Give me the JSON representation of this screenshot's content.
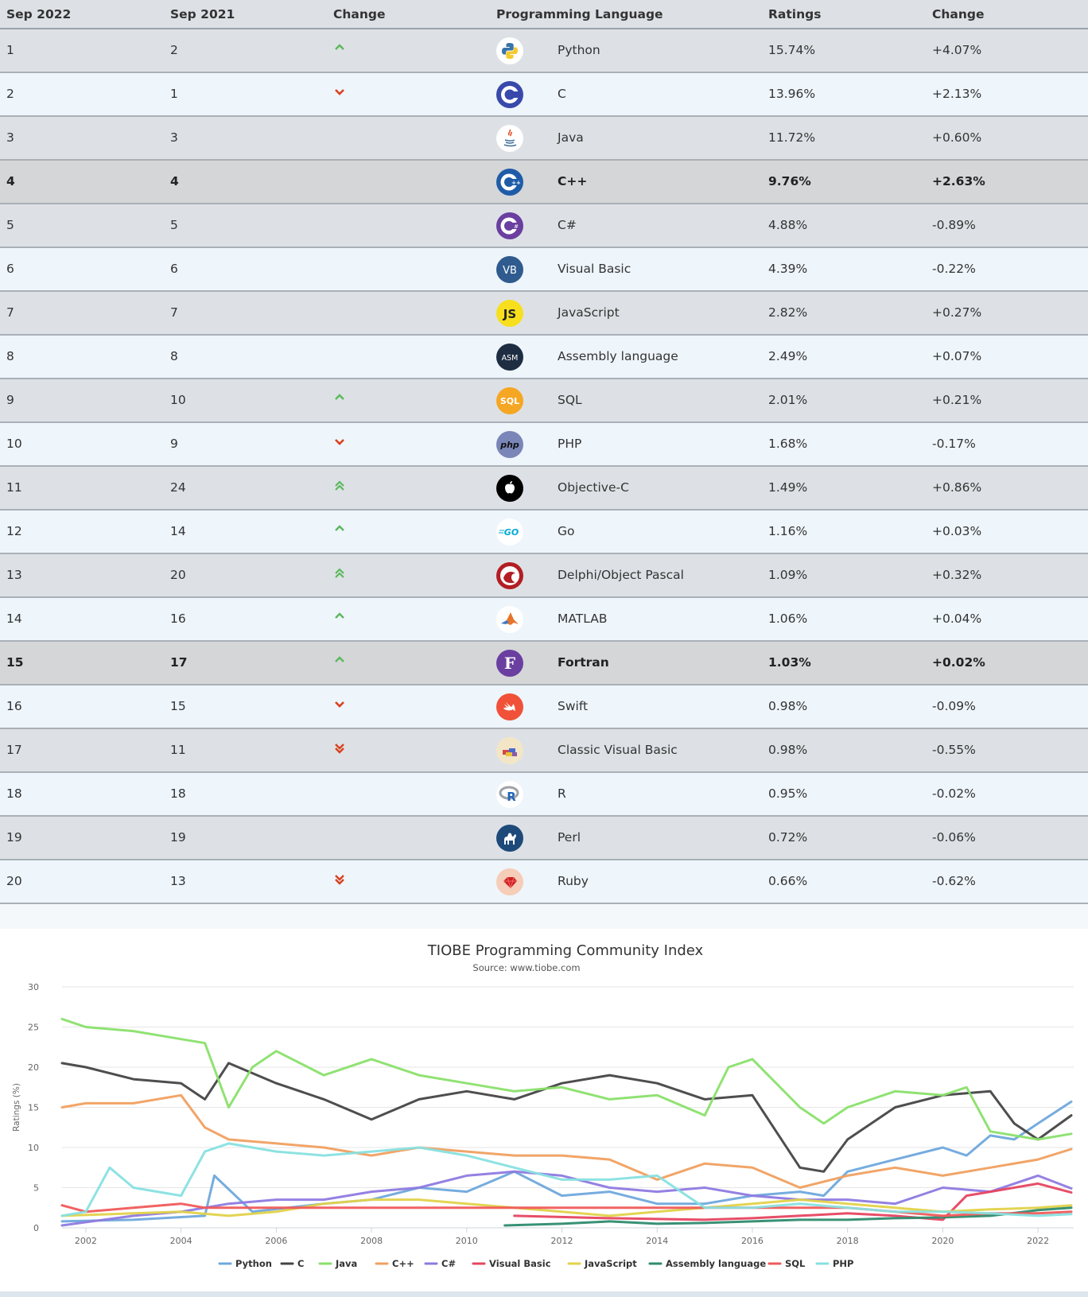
{
  "table": {
    "headers": [
      "Sep 2022",
      "Sep 2021",
      "Change",
      "Programming Language",
      "Ratings",
      "Change"
    ],
    "rows": [
      {
        "rank": "1",
        "prev": "2",
        "trend": "up",
        "lang": "Python",
        "rating": "15.74%",
        "change": "+4.07%",
        "icon": "python-logo-icon",
        "hl": false
      },
      {
        "rank": "2",
        "prev": "1",
        "trend": "down",
        "lang": "C",
        "rating": "13.96%",
        "change": "+2.13%",
        "icon": "c-logo-icon",
        "hl": false
      },
      {
        "rank": "3",
        "prev": "3",
        "trend": "none",
        "lang": "Java",
        "rating": "11.72%",
        "change": "+0.60%",
        "icon": "java-logo-icon",
        "hl": false
      },
      {
        "rank": "4",
        "prev": "4",
        "trend": "none",
        "lang": "C++",
        "rating": "9.76%",
        "change": "+2.63%",
        "icon": "cpp-logo-icon",
        "hl": true
      },
      {
        "rank": "5",
        "prev": "5",
        "trend": "none",
        "lang": "C#",
        "rating": "4.88%",
        "change": "-0.89%",
        "icon": "csharp-logo-icon",
        "hl": false
      },
      {
        "rank": "6",
        "prev": "6",
        "trend": "none",
        "lang": "Visual Basic",
        "rating": "4.39%",
        "change": "-0.22%",
        "icon": "vb-logo-icon",
        "hl": false
      },
      {
        "rank": "7",
        "prev": "7",
        "trend": "none",
        "lang": "JavaScript",
        "rating": "2.82%",
        "change": "+0.27%",
        "icon": "js-logo-icon",
        "hl": false
      },
      {
        "rank": "8",
        "prev": "8",
        "trend": "none",
        "lang": "Assembly language",
        "rating": "2.49%",
        "change": "+0.07%",
        "icon": "asm-logo-icon",
        "hl": false
      },
      {
        "rank": "9",
        "prev": "10",
        "trend": "up",
        "lang": "SQL",
        "rating": "2.01%",
        "change": "+0.21%",
        "icon": "sql-logo-icon",
        "hl": false
      },
      {
        "rank": "10",
        "prev": "9",
        "trend": "down",
        "lang": "PHP",
        "rating": "1.68%",
        "change": "-0.17%",
        "icon": "php-logo-icon",
        "hl": false
      },
      {
        "rank": "11",
        "prev": "24",
        "trend": "up2",
        "lang": "Objective-C",
        "rating": "1.49%",
        "change": "+0.86%",
        "icon": "apple-logo-icon",
        "hl": false
      },
      {
        "rank": "12",
        "prev": "14",
        "trend": "up",
        "lang": "Go",
        "rating": "1.16%",
        "change": "+0.03%",
        "icon": "go-logo-icon",
        "hl": false
      },
      {
        "rank": "13",
        "prev": "20",
        "trend": "up2",
        "lang": "Delphi/Object Pascal",
        "rating": "1.09%",
        "change": "+0.32%",
        "icon": "delphi-logo-icon",
        "hl": false
      },
      {
        "rank": "14",
        "prev": "16",
        "trend": "up",
        "lang": "MATLAB",
        "rating": "1.06%",
        "change": "+0.04%",
        "icon": "matlab-logo-icon",
        "hl": false
      },
      {
        "rank": "15",
        "prev": "17",
        "trend": "up",
        "lang": "Fortran",
        "rating": "1.03%",
        "change": "+0.02%",
        "icon": "fortran-logo-icon",
        "hl": true
      },
      {
        "rank": "16",
        "prev": "15",
        "trend": "down",
        "lang": "Swift",
        "rating": "0.98%",
        "change": "-0.09%",
        "icon": "swift-logo-icon",
        "hl": false
      },
      {
        "rank": "17",
        "prev": "11",
        "trend": "down2",
        "lang": "Classic Visual Basic",
        "rating": "0.98%",
        "change": "-0.55%",
        "icon": "classic-vb-logo-icon",
        "hl": false
      },
      {
        "rank": "18",
        "prev": "18",
        "trend": "none",
        "lang": "R",
        "rating": "0.95%",
        "change": "-0.02%",
        "icon": "r-logo-icon",
        "hl": false
      },
      {
        "rank": "19",
        "prev": "19",
        "trend": "none",
        "lang": "Perl",
        "rating": "0.72%",
        "change": "-0.06%",
        "icon": "perl-logo-icon",
        "hl": false
      },
      {
        "rank": "20",
        "prev": "13",
        "trend": "down2",
        "lang": "Ruby",
        "rating": "0.66%",
        "change": "-0.62%",
        "icon": "ruby-logo-icon",
        "hl": false
      }
    ]
  },
  "colors": {
    "up": "#5cb85c",
    "down": "#d9411e"
  },
  "chart_data": {
    "type": "line",
    "title": "TIOBE Programming Community Index",
    "subtitle": "Source: www.tiobe.com",
    "ylabel": "Ratings (%)",
    "xlabel": "",
    "xlim": [
      2001.5,
      2022.75
    ],
    "ylim": [
      0,
      30
    ],
    "yticks": [
      "0",
      "5",
      "10",
      "15",
      "20",
      "25",
      "30"
    ],
    "xticks": [
      "2002",
      "2004",
      "2006",
      "2008",
      "2010",
      "2012",
      "2014",
      "2016",
      "2018",
      "2020",
      "2022"
    ],
    "grid": "horizontal",
    "legend": "bottom",
    "series": [
      {
        "name": "Python",
        "color": "#6fa8dc",
        "x": [
          2001.5,
          2003,
          2004.5,
          2004.7,
          2005.5,
          2007,
          2008,
          2009,
          2010,
          2011,
          2012,
          2013,
          2014,
          2015,
          2016,
          2017,
          2017.5,
          2018,
          2019,
          2020,
          2020.5,
          2021,
          2021.5,
          2022,
          2022.7
        ],
        "y": [
          0.8,
          1.0,
          1.5,
          6.5,
          2.0,
          3.0,
          3.5,
          5.0,
          4.5,
          7.0,
          4.0,
          4.5,
          3.0,
          3.0,
          4.0,
          4.5,
          4.0,
          7.0,
          8.5,
          10.0,
          9.0,
          11.5,
          11.0,
          13.0,
          15.7
        ]
      },
      {
        "name": "C",
        "color": "#444444",
        "x": [
          2001.5,
          2002,
          2003,
          2004,
          2004.5,
          2005,
          2006,
          2007,
          2008,
          2009,
          2010,
          2011,
          2012,
          2013,
          2014,
          2015,
          2016,
          2016.5,
          2017,
          2017.5,
          2018,
          2019,
          2020,
          2021,
          2021.5,
          2022,
          2022.7
        ],
        "y": [
          20.5,
          20.0,
          18.5,
          18.0,
          16.0,
          20.5,
          18.0,
          16.0,
          13.5,
          16.0,
          17.0,
          16.0,
          18.0,
          19.0,
          18.0,
          16.0,
          16.5,
          12.0,
          7.5,
          7.0,
          11.0,
          15.0,
          16.5,
          17.0,
          13.0,
          11.0,
          14.0
        ]
      },
      {
        "name": "Java",
        "color": "#8ae06c",
        "x": [
          2001.5,
          2002,
          2003,
          2004,
          2004.5,
          2005,
          2005.5,
          2006,
          2007,
          2008,
          2009,
          2010,
          2011,
          2012,
          2013,
          2014,
          2015,
          2015.5,
          2016,
          2017,
          2017.5,
          2018,
          2019,
          2020,
          2020.5,
          2021,
          2022,
          2022.7
        ],
        "y": [
          26.0,
          25.0,
          24.5,
          23.5,
          23.0,
          15.0,
          20.0,
          22.0,
          19.0,
          21.0,
          19.0,
          18.0,
          17.0,
          17.5,
          16.0,
          16.5,
          14.0,
          20.0,
          21.0,
          15.0,
          13.0,
          15.0,
          17.0,
          16.5,
          17.5,
          12.0,
          11.0,
          11.7
        ]
      },
      {
        "name": "C++",
        "color": "#f0a060",
        "x": [
          2001.5,
          2002,
          2003,
          2004,
          2004.5,
          2005,
          2006,
          2007,
          2008,
          2009,
          2010,
          2011,
          2012,
          2013,
          2014,
          2015,
          2016,
          2017,
          2018,
          2019,
          2020,
          2021,
          2022,
          2022.7
        ],
        "y": [
          15.0,
          15.5,
          15.5,
          16.5,
          12.5,
          11.0,
          10.5,
          10.0,
          9.0,
          10.0,
          9.5,
          9.0,
          9.0,
          8.5,
          6.0,
          8.0,
          7.5,
          5.0,
          6.5,
          7.5,
          6.5,
          7.5,
          8.5,
          9.8
        ]
      },
      {
        "name": "C#",
        "color": "#8e7ae0",
        "x": [
          2001.5,
          2002,
          2003,
          2004,
          2005,
          2006,
          2007,
          2008,
          2009,
          2010,
          2011,
          2012,
          2013,
          2014,
          2015,
          2016,
          2017,
          2018,
          2019,
          2020,
          2021,
          2022,
          2022.7
        ],
        "y": [
          0.3,
          0.7,
          1.5,
          2.0,
          3.0,
          3.5,
          3.5,
          4.5,
          5.0,
          6.5,
          7.0,
          6.5,
          5.0,
          4.5,
          5.0,
          4.0,
          3.5,
          3.5,
          3.0,
          5.0,
          4.5,
          6.5,
          4.9
        ]
      },
      {
        "name": "Visual Basic",
        "color": "#e64560",
        "x": [
          2011,
          2013,
          2015,
          2016,
          2018,
          2019,
          2020,
          2020.5,
          2021,
          2022,
          2022.7
        ],
        "y": [
          1.5,
          1.2,
          1.0,
          1.2,
          1.8,
          1.5,
          1.0,
          4.0,
          4.5,
          5.5,
          4.4
        ]
      },
      {
        "name": "JavaScript",
        "color": "#e2d24a",
        "x": [
          2001.5,
          2003,
          2004,
          2005,
          2006,
          2007,
          2008,
          2009,
          2010,
          2011,
          2012,
          2013,
          2014,
          2015,
          2016,
          2017,
          2018,
          2019,
          2020,
          2021,
          2022,
          2022.7
        ],
        "y": [
          1.5,
          1.8,
          2.0,
          1.5,
          2.0,
          3.0,
          3.5,
          3.5,
          3.0,
          2.5,
          2.0,
          1.5,
          2.0,
          2.5,
          3.0,
          3.5,
          3.0,
          2.5,
          2.0,
          2.3,
          2.5,
          2.8
        ]
      },
      {
        "name": "Assembly language",
        "color": "#2e8b6e",
        "x": [
          2010.8,
          2012,
          2013,
          2014,
          2015,
          2016,
          2017,
          2018,
          2019,
          2020,
          2021,
          2022,
          2022.7
        ],
        "y": [
          0.3,
          0.5,
          0.8,
          0.5,
          0.6,
          0.8,
          1.0,
          1.0,
          1.2,
          1.3,
          1.5,
          2.2,
          2.5
        ]
      },
      {
        "name": "SQL",
        "color": "#f05a5a",
        "x": [
          2001.5,
          2002,
          2003,
          2004,
          2004.5,
          2018,
          2019,
          2020,
          2021,
          2022,
          2022.7
        ],
        "y": [
          2.8,
          2.0,
          2.5,
          3.0,
          2.5,
          2.5,
          2.0,
          1.5,
          1.8,
          1.8,
          2.0
        ]
      },
      {
        "name": "PHP",
        "color": "#88e0e0",
        "x": [
          2001.5,
          2002,
          2002.5,
          2003,
          2004,
          2004.5,
          2005,
          2006,
          2007,
          2008,
          2009,
          2010,
          2011,
          2012,
          2013,
          2014,
          2014.5,
          2015,
          2016,
          2017,
          2018,
          2019,
          2020,
          2021,
          2022,
          2022.7
        ],
        "y": [
          1.5,
          2.0,
          7.5,
          5.0,
          4.0,
          9.5,
          10.5,
          9.5,
          9.0,
          9.5,
          10.0,
          9.0,
          7.5,
          6.0,
          6.0,
          6.5,
          4.5,
          2.5,
          2.5,
          3.0,
          2.5,
          2.0,
          2.0,
          1.8,
          1.5,
          1.7
        ]
      }
    ]
  }
}
